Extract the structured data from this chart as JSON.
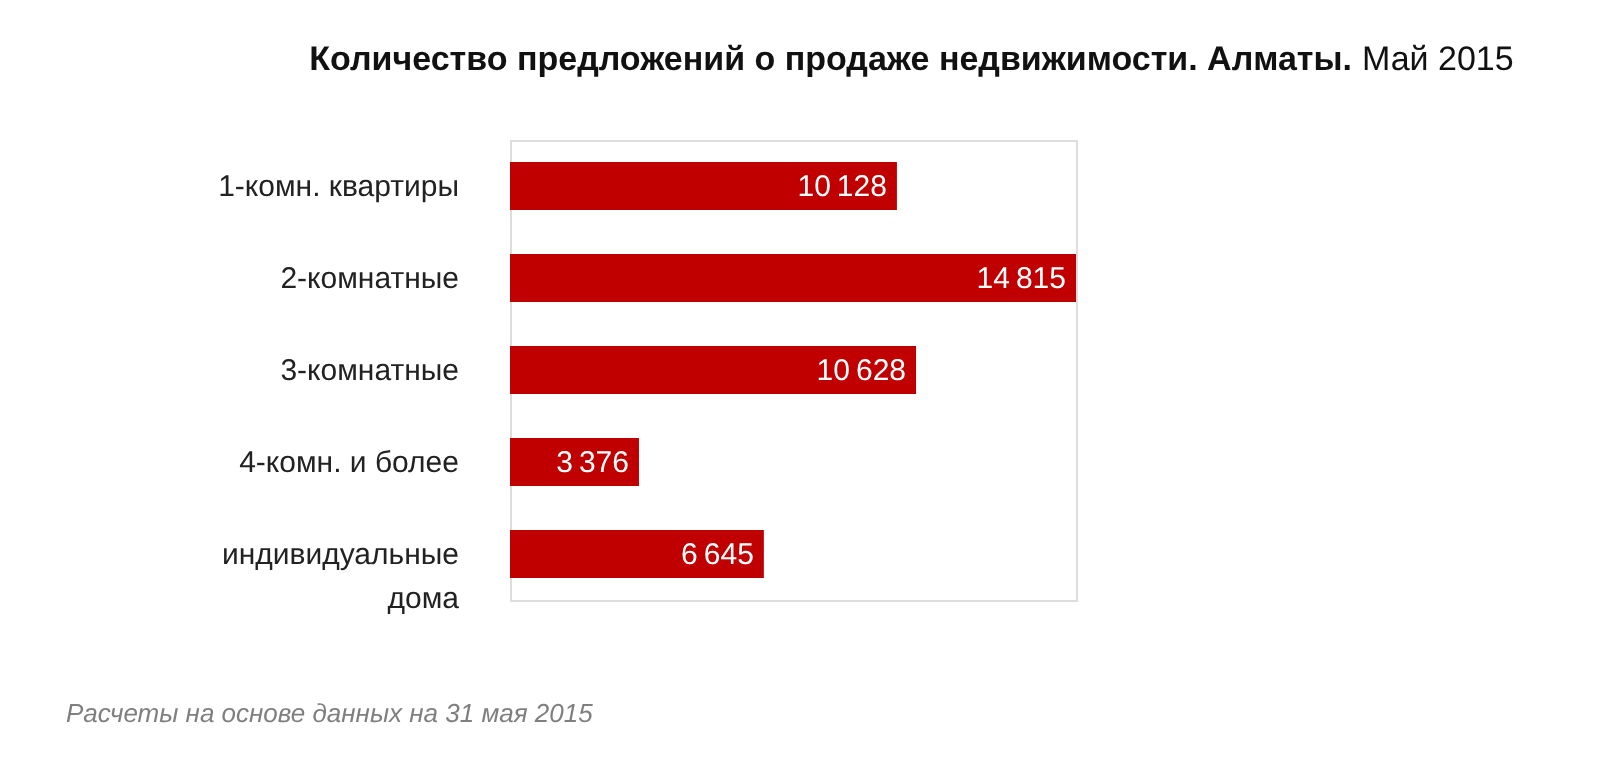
{
  "chart_data": {
    "type": "bar",
    "orientation": "horizontal",
    "title": "Количество предложений о продаже недвижимости. Алматы.",
    "subtitle": "Май 2015",
    "categories": [
      "1-комн. квартиры",
      "2-комнатные",
      "3-комнатные",
      "4-комн. и более",
      "индивидуальные дома"
    ],
    "values": [
      10128,
      14815,
      10628,
      3376,
      6645
    ],
    "color": "#c00000",
    "data_labels": true,
    "tick_labels": "y",
    "grid": false,
    "annotations": [
      "Расчеты на основе данных на 31 мая 2015"
    ]
  }
}
